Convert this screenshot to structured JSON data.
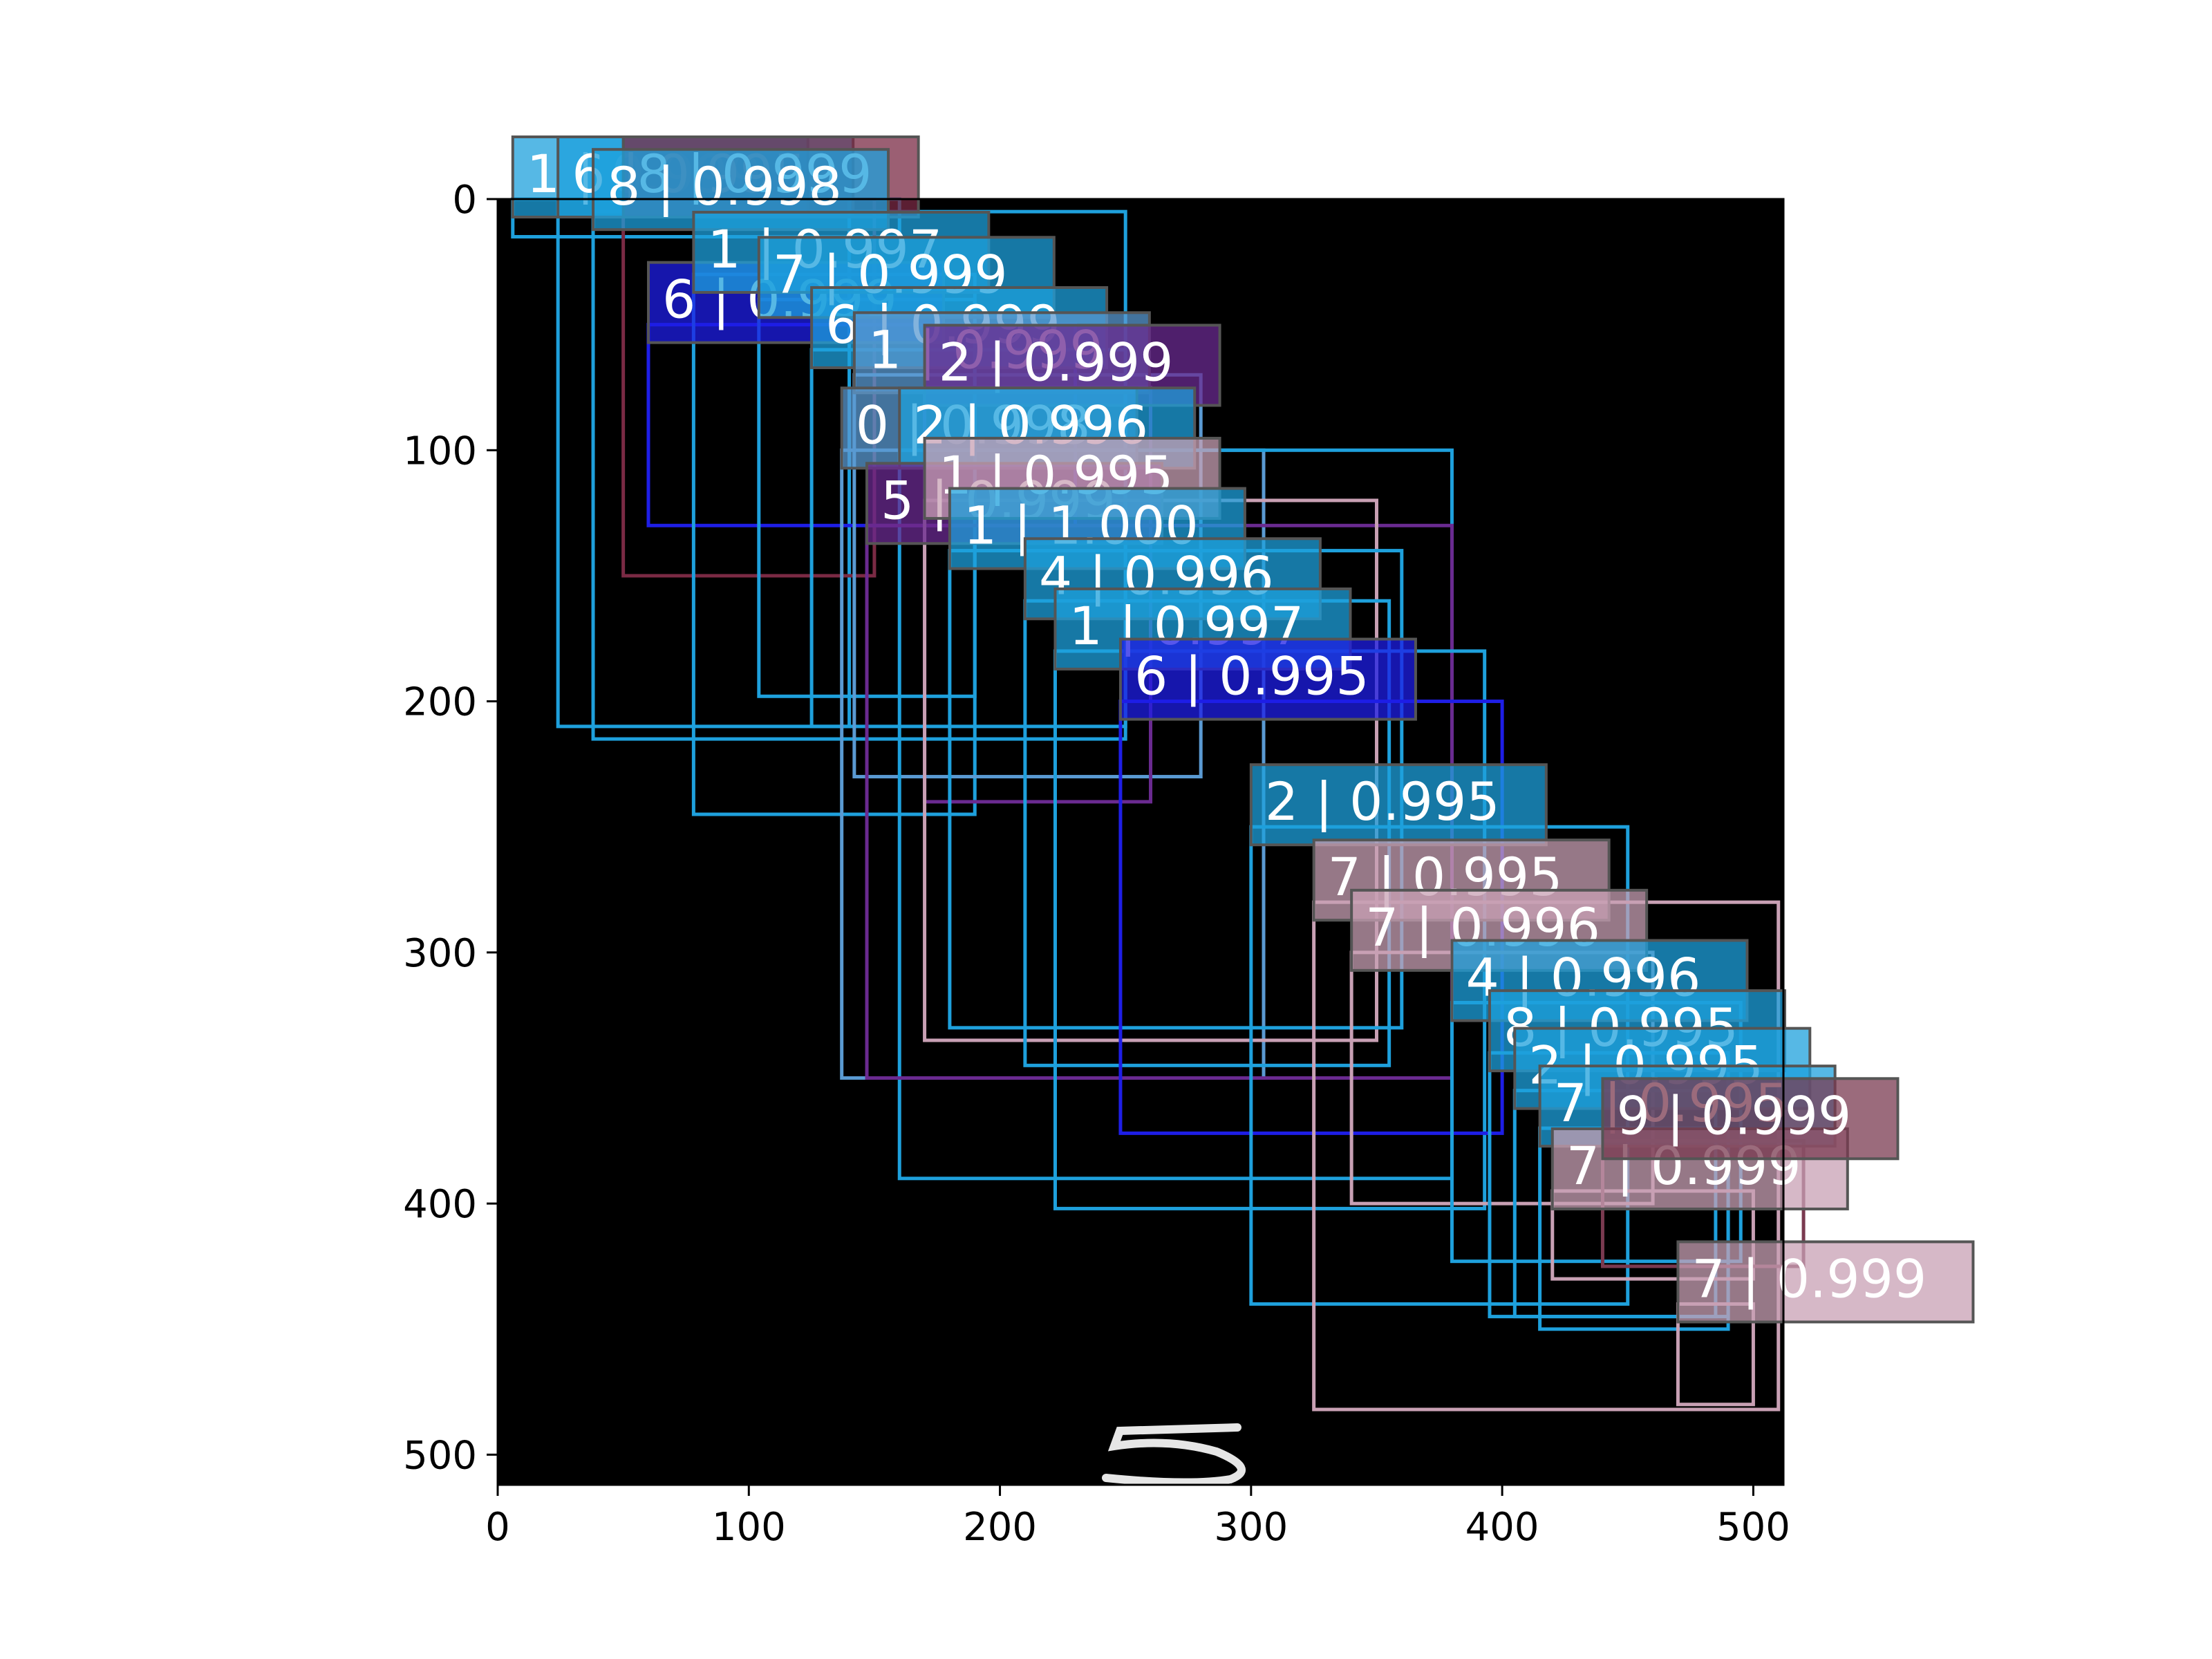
{
  "chart_data": {
    "type": "scatter",
    "title": "",
    "xlabel": "",
    "ylabel": "",
    "xlim": [
      0,
      512
    ],
    "ylim": [
      512,
      0
    ],
    "xticks": [
      "0",
      "100",
      "200",
      "300",
      "400",
      "500"
    ],
    "yticks": [
      "0",
      "100",
      "200",
      "300",
      "400",
      "500"
    ],
    "background": "#000000",
    "grid": false,
    "legend": "none",
    "boxes": [
      {
        "x0": 6,
        "y0": 0,
        "x1": 160,
        "y1": 15,
        "label": "1 | 0.999",
        "color": "#1ea0dc"
      },
      {
        "x0": 24,
        "y0": 0,
        "x1": 140,
        "y1": 210,
        "label": "6 | 0.995",
        "color": "#1ea0dc"
      },
      {
        "x0": 50,
        "y0": 0,
        "x1": 150,
        "y1": 150,
        "label": "8 | 0.999",
        "color": "#7a2a44"
      },
      {
        "x0": 38,
        "y0": 5,
        "x1": 250,
        "y1": 215,
        "label": "8 | 0.998",
        "color": "#1ea0dc"
      },
      {
        "x0": 60,
        "y0": 50,
        "x1": 230,
        "y1": 130,
        "label": "6 | 0.999",
        "color": "#1e1ee6"
      },
      {
        "x0": 78,
        "y0": 30,
        "x1": 190,
        "y1": 245,
        "label": "1 | 0.997",
        "color": "#1ea0dc"
      },
      {
        "x0": 104,
        "y0": 40,
        "x1": 190,
        "y1": 198,
        "label": "7 | 0.999",
        "color": "#1ea0dc"
      },
      {
        "x0": 125,
        "y0": 60,
        "x1": 250,
        "y1": 210,
        "label": "6 | 0.999",
        "color": "#1ea0dc"
      },
      {
        "x0": 142,
        "y0": 70,
        "x1": 280,
        "y1": 230,
        "label": "1 | 0.999",
        "color": "#5a9ad2"
      },
      {
        "x0": 170,
        "y0": 75,
        "x1": 260,
        "y1": 240,
        "label": "2 | 0.999",
        "color": "#6a2a90"
      },
      {
        "x0": 137,
        "y0": 100,
        "x1": 305,
        "y1": 350,
        "label": "0 | 0.998",
        "color": "#5a9ad2"
      },
      {
        "x0": 160,
        "y0": 100,
        "x1": 380,
        "y1": 390,
        "label": "2 | 0.996",
        "color": "#1ea0dc"
      },
      {
        "x0": 147,
        "y0": 130,
        "x1": 380,
        "y1": 350,
        "label": "5 | 0.999",
        "color": "#6a2a90"
      },
      {
        "x0": 170,
        "y0": 120,
        "x1": 350,
        "y1": 335,
        "label": "1 | 0.995",
        "color": "#c8a0b4"
      },
      {
        "x0": 180,
        "y0": 140,
        "x1": 360,
        "y1": 330,
        "label": "1 | 1.000",
        "color": "#1ea0dc"
      },
      {
        "x0": 210,
        "y0": 160,
        "x1": 355,
        "y1": 345,
        "label": "4 | 0.996",
        "color": "#1ea0dc"
      },
      {
        "x0": 222,
        "y0": 180,
        "x1": 393,
        "y1": 402,
        "label": "1 | 0.997",
        "color": "#1ea0dc"
      },
      {
        "x0": 248,
        "y0": 200,
        "x1": 400,
        "y1": 372,
        "label": "6 | 0.995",
        "color": "#1e1ee6"
      },
      {
        "x0": 300,
        "y0": 250,
        "x1": 450,
        "y1": 440,
        "label": "2 | 0.995",
        "color": "#1ea0dc"
      },
      {
        "x0": 325,
        "y0": 280,
        "x1": 510,
        "y1": 482,
        "label": "7 | 0.995",
        "color": "#c8a0b4"
      },
      {
        "x0": 340,
        "y0": 300,
        "x1": 460,
        "y1": 400,
        "label": "7 | 0.996",
        "color": "#c8a0b4"
      },
      {
        "x0": 380,
        "y0": 320,
        "x1": 495,
        "y1": 423,
        "label": "4 | 0.996",
        "color": "#1ea0dc"
      },
      {
        "x0": 395,
        "y0": 340,
        "x1": 490,
        "y1": 445,
        "label": "8 | 0.995",
        "color": "#1ea0dc"
      },
      {
        "x0": 405,
        "y0": 355,
        "x1": 485,
        "y1": 445,
        "label": "2 | 0.995",
        "color": "#1ea0dc"
      },
      {
        "x0": 415,
        "y0": 370,
        "x1": 490,
        "y1": 450,
        "label": "7 | 0.995",
        "color": "#1ea0dc"
      },
      {
        "x0": 420,
        "y0": 395,
        "x1": 500,
        "y1": 430,
        "label": "7 | 0.999",
        "color": "#c8a0b4"
      },
      {
        "x0": 440,
        "y0": 375,
        "x1": 520,
        "y1": 425,
        "label": "9 | 0.999",
        "color": "#7a3a50"
      },
      {
        "x0": 470,
        "y0": 440,
        "x1": 500,
        "y1": 480,
        "label": "7 | 0.999",
        "color": "#c8a0b4"
      }
    ],
    "image_strokes": [
      {
        "shape": "5",
        "x": 290,
        "y": 503
      }
    ]
  }
}
